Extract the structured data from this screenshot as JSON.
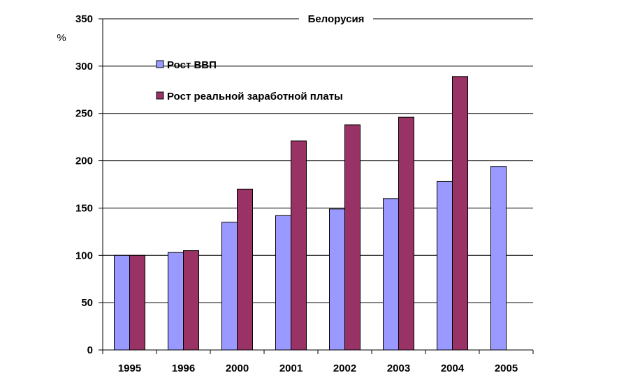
{
  "chart_data": {
    "type": "bar",
    "title": "Белорусия",
    "ylabel": "%",
    "xlabel": "",
    "ylim": [
      0,
      350
    ],
    "yticks": [
      0,
      50,
      100,
      150,
      200,
      250,
      300,
      350
    ],
    "grid": true,
    "legend_position": "top-left",
    "categories": [
      "1995",
      "1996",
      "2000",
      "2001",
      "2002",
      "2003",
      "2004",
      "2005"
    ],
    "series": [
      {
        "name": "Рост ВВП",
        "color": "#9999ff",
        "values": [
          100,
          103,
          135,
          142,
          149,
          160,
          178,
          194
        ]
      },
      {
        "name": "Рост реальной заработной платы",
        "color": "#993366",
        "values": [
          100,
          105,
          170,
          221,
          238,
          246,
          289,
          null
        ]
      }
    ]
  }
}
